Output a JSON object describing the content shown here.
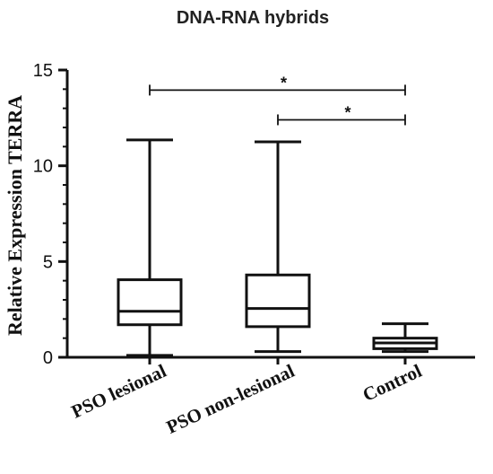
{
  "chart_data": {
    "type": "box",
    "title": "DNA-RNA hybrids",
    "xlabel": "",
    "ylabel": "Relative Expression TERRA",
    "ylim": [
      0,
      15
    ],
    "yticks": [
      0,
      5,
      10,
      15
    ],
    "grid": false,
    "categories": [
      "PSO lesional",
      "PSO non-lesional",
      "Control"
    ],
    "boxes": [
      {
        "category": "PSO lesional",
        "min": 0.1,
        "q1": 1.7,
        "median": 2.4,
        "q3": 4.05,
        "max": 11.35
      },
      {
        "category": "PSO non-lesional",
        "min": 0.3,
        "q1": 1.6,
        "median": 2.55,
        "q3": 4.3,
        "max": 11.25
      },
      {
        "category": "Control",
        "min": 0.3,
        "q1": 0.45,
        "median": 0.75,
        "q3": 1.0,
        "max": 1.75
      }
    ],
    "significance": [
      {
        "from": "PSO lesional",
        "to": "Control",
        "label": "*",
        "y": 13.95
      },
      {
        "from": "PSO non-lesional",
        "to": "Control",
        "label": "*",
        "y": 12.4
      }
    ]
  }
}
